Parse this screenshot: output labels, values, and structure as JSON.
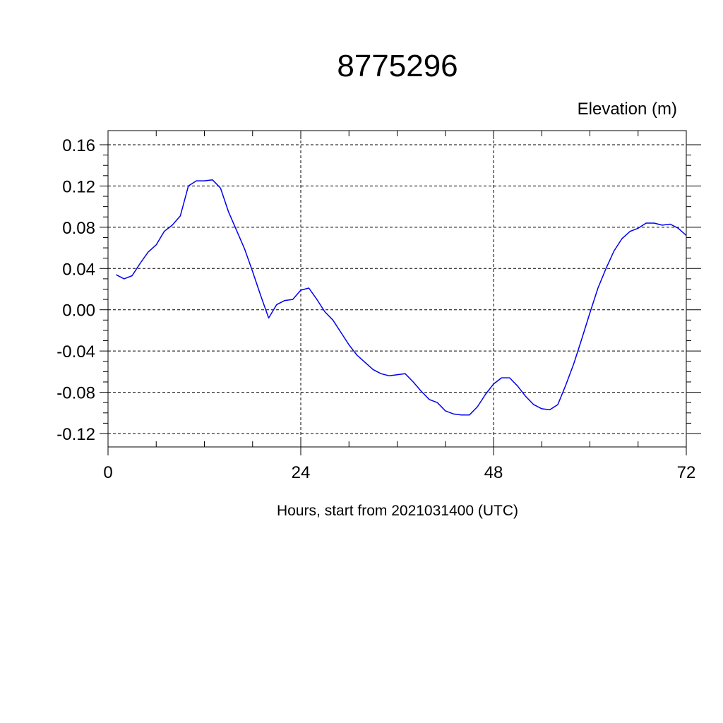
{
  "chart_data": {
    "type": "line",
    "title": "8775296",
    "ylabel": "Elevation (m)",
    "xlabel": "Hours, start from 2021031400 (UTC)",
    "xlim": [
      0,
      72
    ],
    "ylim": [
      -0.12,
      0.16
    ],
    "x_ticks": [
      0,
      24,
      48,
      72
    ],
    "x_tick_labels": [
      "0",
      "24",
      "48",
      "72"
    ],
    "y_ticks": [
      -0.12,
      -0.08,
      -0.04,
      0.0,
      0.04,
      0.08,
      0.12,
      0.16
    ],
    "y_tick_labels": [
      "-0.12",
      "-0.08",
      "-0.04",
      "0.00",
      "0.04",
      "0.08",
      "0.12",
      "0.16"
    ],
    "grid": true,
    "colors": {
      "series": "#0000ee",
      "grid": "#000000",
      "axis": "#000000"
    },
    "series": [
      {
        "x": [
          1,
          2,
          3,
          4,
          5,
          6,
          7,
          8,
          9,
          10,
          11,
          12,
          13,
          14,
          15,
          16,
          17,
          18,
          19,
          20,
          21,
          22,
          23,
          24,
          25,
          26,
          27,
          28,
          29,
          30,
          31,
          32,
          33,
          34,
          35,
          36,
          37,
          38,
          39,
          40,
          41,
          42,
          43,
          44,
          45,
          46,
          47,
          48,
          49,
          50,
          51,
          52,
          53,
          54,
          55,
          56,
          57,
          58,
          59,
          60,
          61,
          62,
          63,
          64,
          65,
          66,
          67,
          68,
          69,
          70,
          71,
          72
        ],
        "values": [
          0.034,
          0.03,
          0.033,
          0.045,
          0.056,
          0.063,
          0.076,
          0.082,
          0.091,
          0.12,
          0.125,
          0.125,
          0.126,
          0.118,
          0.095,
          0.077,
          0.059,
          0.037,
          0.014,
          -0.008,
          0.005,
          0.009,
          0.01,
          0.019,
          0.021,
          0.01,
          -0.002,
          -0.01,
          -0.022,
          -0.034,
          -0.044,
          -0.051,
          -0.058,
          -0.062,
          -0.064,
          -0.063,
          -0.062,
          -0.07,
          -0.079,
          -0.087,
          -0.09,
          -0.098,
          -0.101,
          -0.102,
          -0.102,
          -0.094,
          -0.082,
          -0.072,
          -0.066,
          -0.066,
          -0.074,
          -0.084,
          -0.092,
          -0.096,
          -0.097,
          -0.092,
          -0.073,
          -0.052,
          -0.028,
          -0.003,
          0.021,
          0.04,
          0.057,
          0.069,
          0.076,
          0.079,
          0.084,
          0.084,
          0.082,
          0.083,
          0.079,
          0.072
        ]
      }
    ]
  }
}
